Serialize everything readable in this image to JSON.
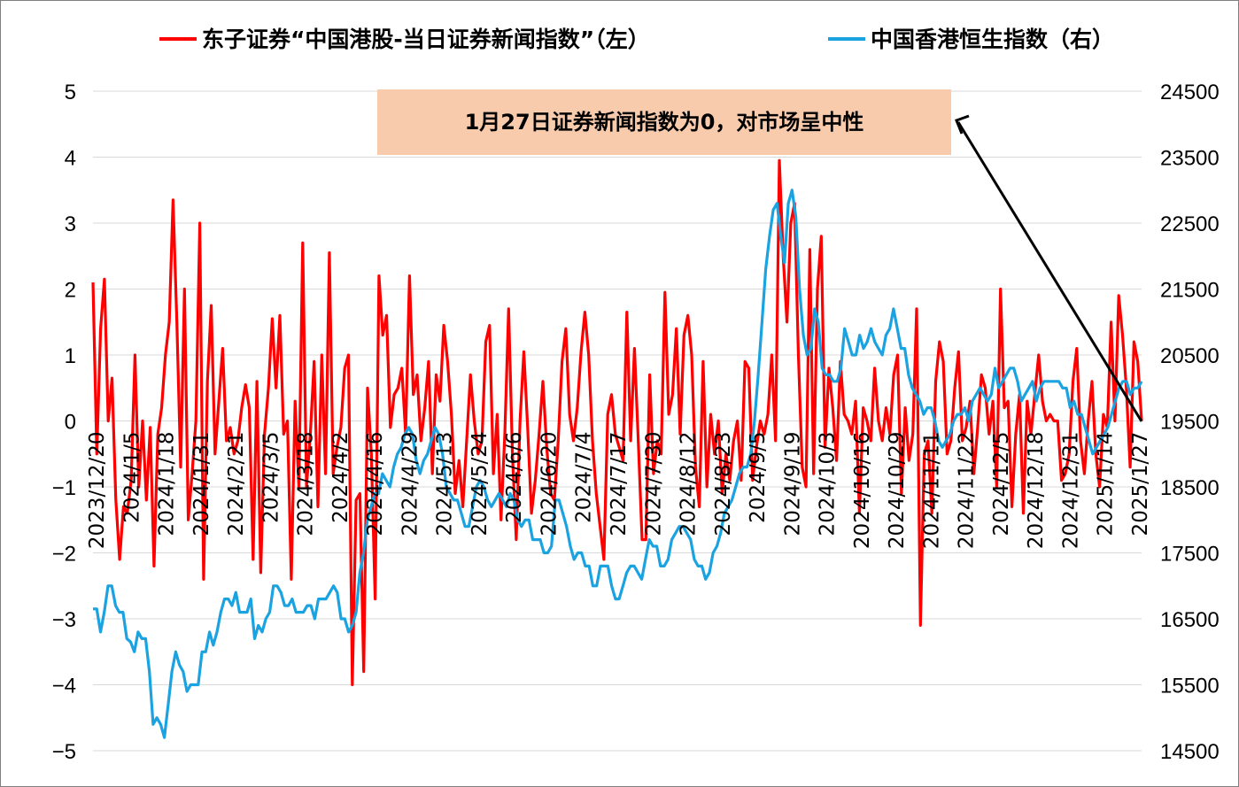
{
  "chart_data": {
    "type": "line",
    "title": "",
    "legend_position": "top",
    "grid": true,
    "y_left": {
      "ticks": [
        "5",
        "4",
        "3",
        "2",
        "1",
        "0",
        "−1",
        "−2",
        "−3",
        "−4",
        "−5"
      ],
      "range": [
        -5,
        5
      ]
    },
    "y_right": {
      "ticks": [
        "24500",
        "23500",
        "22500",
        "21500",
        "20500",
        "19500",
        "18500",
        "17500",
        "16500",
        "15500",
        "14500"
      ],
      "range": [
        14500,
        24500
      ]
    },
    "x_tick_labels": [
      "2023/12/20",
      "2024/1/5",
      "2024/1/18",
      "2024/1/31",
      "2024/2/21",
      "2024/3/5",
      "2024/3/18",
      "2024/4/2",
      "2024/4/16",
      "2024/4/29",
      "2024/5/13",
      "2024/5/24",
      "2024/6/6",
      "2024/6/20",
      "2024/7/4",
      "2024/7/17",
      "2024/7/30",
      "2024/8/12",
      "2024/8/23",
      "2024/9/5",
      "2024/9/19",
      "2024/10/3",
      "2024/10/16",
      "2024/10/29",
      "2024/11/11",
      "2024/11/22",
      "2024/12/5",
      "2024/12/18",
      "2024/12/31",
      "2025/1/14",
      "2025/1/27"
    ],
    "series": [
      {
        "name": "东子证券“中国港股-当日证券新闻指数”（左）",
        "axis": "left",
        "color": "#ff0000",
        "values": [
          2.1,
          -0.5,
          1.4,
          2.15,
          0,
          0.65,
          -1.2,
          -2.1,
          -1.3,
          -1.4,
          -0.9,
          1.0,
          -1.0,
          0,
          -1.2,
          -0.1,
          -2.2,
          -0.2,
          0.2,
          1.0,
          1.5,
          3.35,
          1.5,
          -0.7,
          2.0,
          -1.5,
          -0.8,
          0.0,
          3.0,
          -2.4,
          0.6,
          1.75,
          -0.5,
          0.3,
          1.1,
          -0.3,
          -0.1,
          -0.5,
          -0.3,
          0.2,
          0.55,
          0.2,
          -2.1,
          0.6,
          -2.3,
          -0.2,
          0.5,
          1.55,
          0.5,
          1.6,
          -0.2,
          0.0,
          -2.4,
          0.3,
          -1.0,
          2.7,
          -1.0,
          -0.2,
          0.9,
          -1.3,
          1.0,
          -0.8,
          2.55,
          -0.8,
          -0.4,
          -0.1,
          0.8,
          1.0,
          -4.0,
          -1.2,
          -1.1,
          -3.8,
          0.5,
          -0.5,
          -2.7,
          2.2,
          1.3,
          1.6,
          -0.1,
          0.4,
          0.5,
          0.8,
          -0.2,
          2.2,
          0.4,
          0.7,
          -0.3,
          0.2,
          0.9,
          -0.8,
          0.7,
          0.3,
          1.45,
          0.9,
          0.1,
          -1.1,
          -0.6,
          -1.3,
          -0.3,
          0.7,
          0.0,
          -0.5,
          -0.3,
          1.2,
          1.45,
          -0.8,
          0.1,
          -1.5,
          -0.2,
          1.7,
          -0.5,
          -1.8,
          0.0,
          1.05,
          -0.1,
          -1.4,
          -0.9,
          -0.2,
          0.6,
          -0.4,
          -1.1,
          -1.2,
          -0.3,
          0.9,
          1.4,
          0.1,
          -0.3,
          0.2,
          1.05,
          1.65,
          1.0,
          -0.3,
          -1.1,
          -1.6,
          -2.1,
          0.1,
          0.4,
          -0.2,
          -0.4,
          -0.6,
          1.65,
          -0.3,
          1.1,
          -0.3,
          -1.8,
          -1.8,
          0.7,
          -0.8,
          -0.3,
          -0.5,
          1.95,
          0.1,
          0.4,
          1.4,
          -0.2,
          1.3,
          1.6,
          1.0,
          -0.7,
          -1.3,
          0.9,
          -1.0,
          0.1,
          -0.5,
          0.0,
          -1.1,
          -0.5,
          -0.9,
          -0.3,
          0.0,
          -0.9,
          0.9,
          0.8,
          -0.9,
          -0.4,
          0.0,
          -0.2,
          0.1,
          1.0,
          -0.3,
          3.95,
          2.5,
          1.5,
          3.0,
          3.3,
          1.0,
          -0.7,
          -1.0,
          2.6,
          -0.8,
          2.0,
          2.8,
          -0.4,
          0.8,
          0.2,
          -0.6,
          0.9,
          0.1,
          0.0,
          -0.2,
          0.3,
          -1.4,
          0.2,
          0.0,
          -0.3,
          0.8,
          0.0,
          -0.3,
          0.2,
          -0.2,
          0.7,
          1.0,
          -1.1,
          0.2,
          -0.6,
          -0.2,
          1.7,
          -3.1,
          -0.5,
          -0.3,
          -1.4,
          0.6,
          1.2,
          0.9,
          -0.5,
          -0.3,
          0.5,
          1.05,
          -0.3,
          -0.1,
          0.3,
          -0.8,
          -0.1,
          0.7,
          0.5,
          -0.2,
          0.3,
          -1.0,
          2.0,
          0.2,
          0.3,
          -1.3,
          -0.2,
          0.4,
          -1.4,
          0.3,
          -0.2,
          0.4,
          1.0,
          0.3,
          0.0,
          0.1,
          0.0,
          0.0,
          -0.9,
          -0.8,
          -0.5,
          0.6,
          1.1,
          -0.3,
          -0.8,
          0.0,
          0.6,
          -0.5,
          -1.0,
          0.1,
          -0.1,
          1.5,
          0.0,
          1.9,
          1.3,
          0.5,
          -0.7,
          1.2,
          0.9,
          0.0
        ]
      },
      {
        "name": "中国香港恒生指数（右）",
        "axis": "right",
        "color": "#1aa3e0",
        "values": [
          16650,
          16650,
          16300,
          16600,
          17000,
          17000,
          16700,
          16600,
          16600,
          16200,
          16150,
          16000,
          16300,
          16200,
          16200,
          15700,
          14900,
          15000,
          14900,
          14700,
          15200,
          15700,
          16000,
          15800,
          15700,
          15400,
          15500,
          15500,
          15500,
          16000,
          16000,
          16300,
          16100,
          16300,
          16600,
          16800,
          16800,
          16700,
          16900,
          16600,
          16600,
          16600,
          16800,
          16200,
          16400,
          16300,
          16500,
          16600,
          17000,
          17000,
          16900,
          16700,
          16700,
          16800,
          16600,
          16600,
          16600,
          16700,
          16700,
          16500,
          16800,
          16800,
          16800,
          16900,
          17000,
          16900,
          16500,
          16500,
          16300,
          16400,
          16600,
          17200,
          17500,
          18000,
          18200,
          18400,
          18400,
          18700,
          18600,
          18500,
          18800,
          19000,
          19100,
          19300,
          19400,
          19300,
          18900,
          18700,
          18900,
          19000,
          19200,
          19400,
          19300,
          19000,
          18500,
          18400,
          18300,
          18300,
          18100,
          17900,
          17900,
          18200,
          18500,
          18600,
          18500,
          18300,
          18200,
          18300,
          18400,
          18300,
          18200,
          18400,
          18300,
          18000,
          17900,
          18000,
          18000,
          17700,
          17700,
          17700,
          17500,
          17500,
          17600,
          18300,
          18300,
          18100,
          17900,
          17600,
          17400,
          17500,
          17500,
          17300,
          17300,
          17000,
          17000,
          17300,
          17300,
          17300,
          17000,
          16800,
          16800,
          17000,
          17200,
          17300,
          17300,
          17200,
          17100,
          17400,
          17700,
          17600,
          17600,
          17300,
          17300,
          17400,
          17700,
          17800,
          17900,
          17900,
          17800,
          17700,
          17400,
          17300,
          17300,
          17100,
          17200,
          17500,
          17600,
          17800,
          18100,
          18200,
          18300,
          18500,
          18700,
          18800,
          18800,
          19000,
          19500,
          20200,
          21000,
          21800,
          22300,
          22700,
          22800,
          22300,
          21900,
          22800,
          23000,
          22600,
          21500,
          20800,
          20500,
          20600,
          21200,
          21000,
          20300,
          20200,
          20200,
          20100,
          20100,
          20300,
          20900,
          20700,
          20500,
          20500,
          20800,
          20600,
          20700,
          20900,
          20700,
          20600,
          20500,
          20800,
          20900,
          21200,
          20900,
          20600,
          20600,
          20200,
          20000,
          19900,
          19800,
          19600,
          19700,
          19700,
          19500,
          19200,
          19100,
          19200,
          19300,
          19500,
          19600,
          19600,
          19700,
          19500,
          19800,
          19900,
          20000,
          19900,
          19800,
          19900,
          20300,
          20000,
          20100,
          20200,
          20300,
          20300,
          20100,
          19800,
          19900,
          20000,
          20100,
          19800,
          20000,
          20100,
          20100,
          20100,
          20100,
          20100,
          20000,
          20000,
          19700,
          19800,
          19600,
          19600,
          19400,
          19200,
          19000,
          19100,
          19200,
          19300,
          19400,
          19600,
          19800,
          20000,
          20100,
          20100,
          19900,
          20000,
          20000,
          20100
        ]
      }
    ],
    "annotation": {
      "text": "1月27日证券新闻指数为0，对市场呈中性",
      "box_color": "#f8cbad"
    }
  }
}
